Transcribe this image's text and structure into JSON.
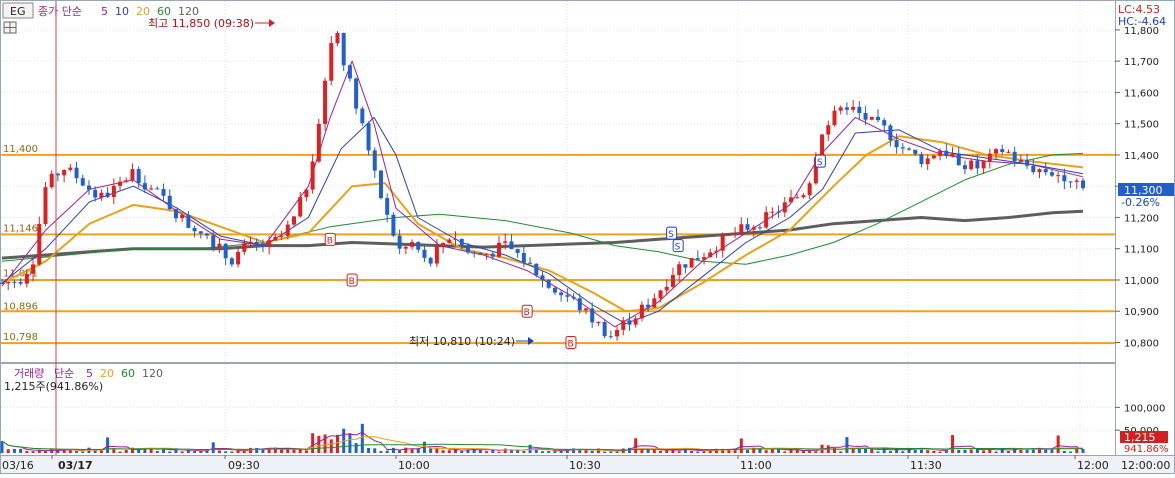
{
  "toolbar": {
    "symbol": "EG",
    "legend_prefix": "종가 단순",
    "ma_periods": [
      "5",
      "10",
      "20",
      "60",
      "120"
    ],
    "ma_colors": [
      "#9b1f9b",
      "#2a3eb0",
      "#e8a21a",
      "#1e8a2e",
      "#5e5e5e"
    ]
  },
  "limits": {
    "lc": "LC:4.53",
    "hc": "HC:-4.64"
  },
  "annotations": {
    "high": "최고 11,850 (09:38)",
    "low": "최저 10,810 (10:24)",
    "current_price": "11,300",
    "current_change": "-0.26%"
  },
  "price_lines": {
    "levels": [
      11400,
      11146,
      11001,
      10896,
      10798
    ],
    "labels": [
      "11,400",
      "11,146",
      "11,001",
      "10,896",
      "10,798"
    ],
    "extra_lines": [
      11000,
      10900
    ]
  },
  "volume_legend": {
    "prefix": "거래량",
    "kind": "단순",
    "periods": [
      "5",
      "20",
      "60",
      "120"
    ],
    "colors": [
      "#9b1f9b",
      "#e8a21a",
      "#1e8a2e",
      "#5e5e5e"
    ],
    "current": "1,215주(941.86%)"
  },
  "volume_right": {
    "current": "1,215",
    "ratio": "941.86%"
  },
  "chart_data": {
    "type": "candlestick",
    "price_axis": {
      "ticks": [
        11800,
        11700,
        11600,
        11500,
        11400,
        11300,
        11200,
        11100,
        11000,
        10900,
        10800
      ],
      "labels": [
        "11,800",
        "11,700",
        "11,600",
        "11,500",
        "11,400",
        "11,300",
        "11,200",
        "11,100",
        "11,000",
        "10,900",
        "10,800"
      ],
      "range": [
        10760,
        11870
      ]
    },
    "volume_axis": {
      "ticks": [
        100000,
        50000
      ],
      "labels": [
        "100,000",
        "50,000"
      ],
      "range": [
        0,
        160000
      ]
    },
    "time_axis": {
      "labels": [
        "03/16",
        "03/17",
        "09:30",
        "10:00",
        "10:30",
        "11:00",
        "11:30",
        "12:00",
        "12:00:00"
      ],
      "label_x_hint": "dates/times",
      "day_separator": "03/17"
    },
    "close_path": [
      [
        0,
        10990
      ],
      [
        8,
        11000
      ],
      [
        14,
        11060
      ],
      [
        20,
        11300
      ],
      [
        28,
        11360
      ],
      [
        36,
        11320
      ],
      [
        44,
        11260
      ],
      [
        52,
        11290
      ],
      [
        60,
        11350
      ],
      [
        66,
        11300
      ],
      [
        74,
        11260
      ],
      [
        80,
        11210
      ],
      [
        86,
        11170
      ],
      [
        92,
        11160
      ],
      [
        98,
        11110
      ],
      [
        104,
        11060
      ],
      [
        110,
        11100
      ],
      [
        116,
        11110
      ],
      [
        122,
        11110
      ],
      [
        128,
        11140
      ],
      [
        134,
        11200
      ],
      [
        140,
        11320
      ],
      [
        146,
        11560
      ],
      [
        152,
        11830
      ],
      [
        158,
        11650
      ],
      [
        164,
        11520
      ],
      [
        170,
        11340
      ],
      [
        176,
        11200
      ],
      [
        182,
        11090
      ],
      [
        188,
        11120
      ],
      [
        194,
        11050
      ],
      [
        200,
        11110
      ],
      [
        206,
        11150
      ],
      [
        212,
        11090
      ],
      [
        218,
        11080
      ],
      [
        224,
        11090
      ],
      [
        230,
        11110
      ],
      [
        236,
        11080
      ],
      [
        242,
        11040
      ],
      [
        248,
        10990
      ],
      [
        254,
        10960
      ],
      [
        260,
        10940
      ],
      [
        266,
        10900
      ],
      [
        272,
        10860
      ],
      [
        278,
        10820
      ],
      [
        284,
        10860
      ],
      [
        290,
        10890
      ],
      [
        296,
        10930
      ],
      [
        302,
        10980
      ],
      [
        308,
        11040
      ],
      [
        314,
        11060
      ],
      [
        320,
        11080
      ],
      [
        326,
        11110
      ],
      [
        332,
        11140
      ],
      [
        338,
        11160
      ],
      [
        344,
        11180
      ],
      [
        350,
        11200
      ],
      [
        356,
        11230
      ],
      [
        362,
        11260
      ],
      [
        368,
        11290
      ],
      [
        374,
        11470
      ],
      [
        380,
        11540
      ],
      [
        386,
        11560
      ],
      [
        392,
        11530
      ],
      [
        398,
        11500
      ],
      [
        404,
        11480
      ],
      [
        410,
        11430
      ],
      [
        416,
        11400
      ],
      [
        422,
        11380
      ],
      [
        428,
        11420
      ],
      [
        434,
        11400
      ],
      [
        440,
        11370
      ],
      [
        446,
        11360
      ],
      [
        452,
        11390
      ],
      [
        458,
        11420
      ],
      [
        464,
        11380
      ],
      [
        470,
        11360
      ],
      [
        476,
        11350
      ],
      [
        482,
        11340
      ],
      [
        488,
        11330
      ],
      [
        494,
        11310
      ]
    ],
    "ma_series": {
      "ma5": [
        [
          0,
          10980
        ],
        [
          20,
          11160
        ],
        [
          40,
          11290
        ],
        [
          60,
          11320
        ],
        [
          80,
          11220
        ],
        [
          100,
          11130
        ],
        [
          120,
          11110
        ],
        [
          140,
          11300
        ],
        [
          150,
          11520
        ],
        [
          160,
          11700
        ],
        [
          170,
          11500
        ],
        [
          180,
          11230
        ],
        [
          200,
          11110
        ],
        [
          220,
          11080
        ],
        [
          240,
          11030
        ],
        [
          260,
          10950
        ],
        [
          280,
          10850
        ],
        [
          300,
          10930
        ],
        [
          320,
          11060
        ],
        [
          340,
          11150
        ],
        [
          360,
          11240
        ],
        [
          374,
          11400
        ],
        [
          390,
          11520
        ],
        [
          410,
          11450
        ],
        [
          430,
          11400
        ],
        [
          450,
          11380
        ],
        [
          470,
          11370
        ],
        [
          494,
          11330
        ]
      ],
      "ma10": [
        [
          0,
          10990
        ],
        [
          20,
          11100
        ],
        [
          40,
          11250
        ],
        [
          60,
          11300
        ],
        [
          80,
          11230
        ],
        [
          100,
          11140
        ],
        [
          120,
          11110
        ],
        [
          140,
          11200
        ],
        [
          155,
          11420
        ],
        [
          170,
          11520
        ],
        [
          180,
          11400
        ],
        [
          190,
          11200
        ],
        [
          210,
          11120
        ],
        [
          230,
          11080
        ],
        [
          250,
          11020
        ],
        [
          270,
          10920
        ],
        [
          285,
          10860
        ],
        [
          300,
          10900
        ],
        [
          320,
          11010
        ],
        [
          340,
          11120
        ],
        [
          360,
          11200
        ],
        [
          375,
          11290
        ],
        [
          390,
          11470
        ],
        [
          410,
          11480
        ],
        [
          430,
          11410
        ],
        [
          450,
          11390
        ],
        [
          470,
          11370
        ],
        [
          494,
          11340
        ]
      ],
      "ma20": [
        [
          0,
          10990
        ],
        [
          20,
          11060
        ],
        [
          40,
          11180
        ],
        [
          60,
          11240
        ],
        [
          80,
          11220
        ],
        [
          100,
          11170
        ],
        [
          120,
          11120
        ],
        [
          140,
          11150
        ],
        [
          160,
          11300
        ],
        [
          175,
          11310
        ],
        [
          190,
          11180
        ],
        [
          210,
          11100
        ],
        [
          230,
          11070
        ],
        [
          250,
          11030
        ],
        [
          270,
          10960
        ],
        [
          285,
          10900
        ],
        [
          300,
          10910
        ],
        [
          320,
          10990
        ],
        [
          340,
          11080
        ],
        [
          360,
          11160
        ],
        [
          380,
          11300
        ],
        [
          395,
          11400
        ],
        [
          410,
          11460
        ],
        [
          430,
          11440
        ],
        [
          450,
          11400
        ],
        [
          470,
          11380
        ],
        [
          494,
          11360
        ]
      ],
      "ma60": [
        [
          0,
          11060
        ],
        [
          30,
          11080
        ],
        [
          60,
          11100
        ],
        [
          90,
          11100
        ],
        [
          120,
          11120
        ],
        [
          150,
          11170
        ],
        [
          180,
          11200
        ],
        [
          200,
          11210
        ],
        [
          230,
          11190
        ],
        [
          260,
          11150
        ],
        [
          280,
          11110
        ],
        [
          300,
          11090
        ],
        [
          320,
          11060
        ],
        [
          340,
          11050
        ],
        [
          360,
          11080
        ],
        [
          380,
          11120
        ],
        [
          400,
          11180
        ],
        [
          420,
          11250
        ],
        [
          440,
          11320
        ],
        [
          460,
          11370
        ],
        [
          480,
          11400
        ],
        [
          494,
          11405
        ]
      ],
      "ma120": [
        [
          0,
          11070
        ],
        [
          20,
          11080
        ],
        [
          40,
          11090
        ],
        [
          60,
          11100
        ],
        [
          80,
          11100
        ],
        [
          100,
          11100
        ],
        [
          120,
          11110
        ],
        [
          140,
          11110
        ],
        [
          160,
          11120
        ],
        [
          180,
          11115
        ],
        [
          200,
          11110
        ],
        [
          220,
          11105
        ],
        [
          240,
          11110
        ],
        [
          260,
          11115
        ],
        [
          280,
          11120
        ],
        [
          300,
          11130
        ],
        [
          320,
          11140
        ],
        [
          340,
          11150
        ],
        [
          360,
          11160
        ],
        [
          380,
          11180
        ],
        [
          400,
          11190
        ],
        [
          420,
          11200
        ],
        [
          440,
          11190
        ],
        [
          460,
          11200
        ],
        [
          480,
          11215
        ],
        [
          494,
          11220
        ]
      ]
    },
    "signals": [
      {
        "type": "B",
        "at": 150,
        "price": 11130
      },
      {
        "type": "B",
        "at": 160,
        "price": 11000
      },
      {
        "type": "B",
        "at": 240,
        "price": 10900
      },
      {
        "type": "B",
        "at": 260,
        "price": 10800
      },
      {
        "type": "S",
        "at": 306,
        "price": 11150
      },
      {
        "type": "S",
        "at": 309,
        "price": 11110
      },
      {
        "type": "S",
        "at": 374,
        "price": 11380
      }
    ]
  }
}
